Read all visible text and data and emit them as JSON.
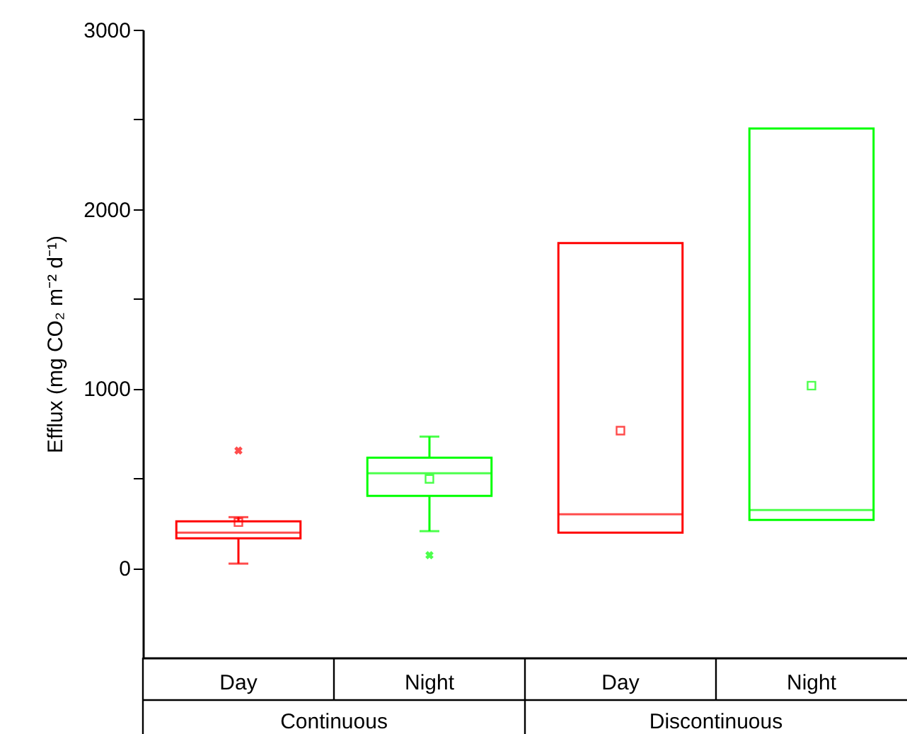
{
  "chart_data": {
    "type": "box",
    "ylabel": "Efflux (mg CO₂ m⁻² d⁻¹)",
    "categories": [
      "Day",
      "Night",
      "Day",
      "Night"
    ],
    "annotations": [
      "Continuous",
      "Discontinuous"
    ],
    "colors": [
      "#ff0000",
      "#00ff00",
      "#ff0000",
      "#00ff00"
    ],
    "boxes": [
      {
        "low": 24,
        "q1": 165,
        "median": 197,
        "q3": 260,
        "high": 283,
        "mean": 255,
        "outliers": [
          654
        ]
      },
      {
        "low": 205,
        "q1": 402,
        "median": 528,
        "q3": 614,
        "high": 732,
        "mean": 496,
        "outliers": [
          71
        ]
      },
      {
        "low": 197,
        "q1": 197,
        "median": 299,
        "q3": 1811,
        "high": 1811,
        "mean": 765
      },
      {
        "low": 268,
        "q1": 268,
        "median": 323,
        "q3": 2449,
        "high": 2449,
        "mean": 1016
      }
    ],
    "ylim": [
      -500,
      3000
    ],
    "yticks": [
      0,
      {
        "value": 500,
        "label": null
      },
      1000,
      {
        "value": 1500,
        "label": null
      },
      2000,
      {
        "value": 2500,
        "label": null
      },
      3000
    ],
    "marker": "square",
    "grid": false
  }
}
